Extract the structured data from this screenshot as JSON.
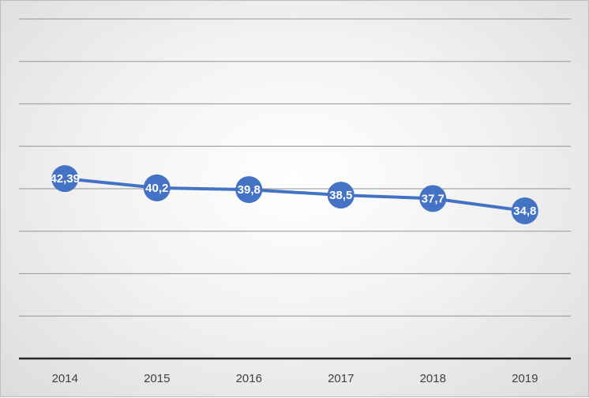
{
  "chart_data": {
    "type": "line",
    "categories": [
      "2014",
      "2015",
      "2016",
      "2017",
      "2018",
      "2019"
    ],
    "series": [
      {
        "values": [
          42.39,
          40.2,
          39.8,
          38.5,
          37.7,
          34.8
        ],
        "labels": [
          "42,39",
          "40,2",
          "39,8",
          "38,5",
          "37,7",
          "34,8"
        ],
        "color": "#4472c4"
      }
    ],
    "ylim": [
      0,
      80
    ],
    "grid": true,
    "y_tick_labels_visible": false,
    "legend": "none"
  }
}
